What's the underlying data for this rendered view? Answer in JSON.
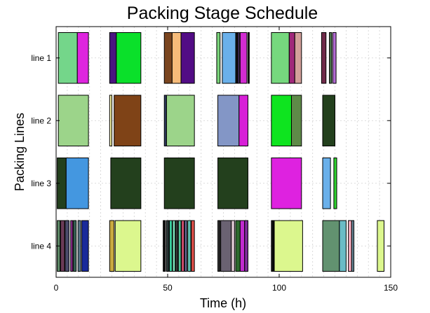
{
  "chart_data": {
    "type": "gantt",
    "title": "Packing Stage Schedule",
    "xlabel": "Time (h)",
    "ylabel": "Packing Lines",
    "xlim": [
      0,
      150
    ],
    "xticks": [
      0,
      50,
      100,
      150
    ],
    "grid": true,
    "lines": [
      "line 1",
      "line 2",
      "line 3",
      "line 4"
    ],
    "tasks": {
      "line 1": [
        {
          "start": 1,
          "end": 9.5,
          "color": "#74d68a"
        },
        {
          "start": 9.5,
          "end": 14.5,
          "color": "#de25de"
        },
        {
          "start": 24,
          "end": 27,
          "color": "#4a1580"
        },
        {
          "start": 27,
          "end": 38,
          "color": "#0ae02a"
        },
        {
          "start": 48.5,
          "end": 52,
          "color": "#7a451f"
        },
        {
          "start": 52,
          "end": 56,
          "color": "#f6bb7a"
        },
        {
          "start": 56,
          "end": 62,
          "color": "#520c85"
        },
        {
          "start": 72,
          "end": 73.5,
          "color": "#7ad47a"
        },
        {
          "start": 74.5,
          "end": 80.5,
          "color": "#6ab0ea"
        },
        {
          "start": 80.5,
          "end": 81.5,
          "color": "#111111"
        },
        {
          "start": 81.5,
          "end": 82.2,
          "color": "#5a3a7a"
        },
        {
          "start": 82.5,
          "end": 85.5,
          "color": "#d22cd2"
        },
        {
          "start": 86,
          "end": 86.6,
          "color": "#1e1e1e"
        },
        {
          "start": 96.5,
          "end": 104.5,
          "color": "#76d87e"
        },
        {
          "start": 104.5,
          "end": 107,
          "color": "#a0287a"
        },
        {
          "start": 107,
          "end": 110,
          "color": "#d3a09a"
        },
        {
          "start": 119,
          "end": 121,
          "color": "#702a4a"
        },
        {
          "start": 122.5,
          "end": 123.5,
          "color": "#4c7a4c"
        },
        {
          "start": 124,
          "end": 125.5,
          "color": "#b06ad0"
        }
      ],
      "line 2": [
        {
          "start": 1,
          "end": 14.5,
          "color": "#9cd48a"
        },
        {
          "start": 24,
          "end": 25,
          "color": "#f1eda0"
        },
        {
          "start": 26,
          "end": 38,
          "color": "#7f4317"
        },
        {
          "start": 48.5,
          "end": 49.5,
          "color": "#2f3a5f"
        },
        {
          "start": 49.5,
          "end": 62,
          "color": "#9cd48a"
        },
        {
          "start": 72.5,
          "end": 82,
          "color": "#8396c6"
        },
        {
          "start": 82,
          "end": 86,
          "color": "#d71fd7"
        },
        {
          "start": 96.5,
          "end": 105.5,
          "color": "#0ee41f"
        },
        {
          "start": 105.5,
          "end": 110,
          "color": "#5e8a48"
        },
        {
          "start": 119.5,
          "end": 125,
          "color": "#23401d"
        }
      ],
      "line 3": [
        {
          "start": 0.5,
          "end": 4.5,
          "color": "#23401d"
        },
        {
          "start": 4.5,
          "end": 14.5,
          "color": "#4497e0"
        },
        {
          "start": 24.5,
          "end": 38,
          "color": "#23401d"
        },
        {
          "start": 48.5,
          "end": 62,
          "color": "#23401d"
        },
        {
          "start": 72.5,
          "end": 86,
          "color": "#23401d"
        },
        {
          "start": 96.5,
          "end": 110,
          "color": "#de22e0"
        },
        {
          "start": 119.5,
          "end": 123,
          "color": "#6ab0ea"
        },
        {
          "start": 124.5,
          "end": 125.8,
          "color": "#2ed32e"
        }
      ],
      "line 4": [
        {
          "start": 0.5,
          "end": 1.8,
          "color": "#5e8a68"
        },
        {
          "start": 2,
          "end": 3.8,
          "color": "#6a3a56"
        },
        {
          "start": 4,
          "end": 5.8,
          "color": "#4a4a6a"
        },
        {
          "start": 6.5,
          "end": 7.5,
          "color": "#8a2a8a"
        },
        {
          "start": 7.8,
          "end": 9,
          "color": "#3a6a5a"
        },
        {
          "start": 9.8,
          "end": 11,
          "color": "#5a7a8a"
        },
        {
          "start": 11.5,
          "end": 14.5,
          "color": "#1a2a9a"
        },
        {
          "start": 24,
          "end": 26,
          "color": "#c9a940"
        },
        {
          "start": 26.5,
          "end": 38,
          "color": "#dcf78e"
        },
        {
          "start": 48,
          "end": 49,
          "color": "#111111"
        },
        {
          "start": 49.5,
          "end": 50.6,
          "color": "#2a3a3a"
        },
        {
          "start": 50.8,
          "end": 52,
          "color": "#3ad2a0"
        },
        {
          "start": 52.2,
          "end": 53.4,
          "color": "#7adab4"
        },
        {
          "start": 53.6,
          "end": 54.6,
          "color": "#3a3a3a"
        },
        {
          "start": 54.8,
          "end": 56,
          "color": "#52c49a"
        },
        {
          "start": 56.2,
          "end": 57.4,
          "color": "#d85070"
        },
        {
          "start": 57.6,
          "end": 58.6,
          "color": "#6a6a9a"
        },
        {
          "start": 59,
          "end": 60.4,
          "color": "#60c0b0"
        },
        {
          "start": 60.6,
          "end": 62,
          "color": "#e0504a"
        },
        {
          "start": 72.5,
          "end": 73.5,
          "color": "#2e2e2e"
        },
        {
          "start": 73.8,
          "end": 78.5,
          "color": "#6a6272"
        },
        {
          "start": 78.5,
          "end": 80,
          "color": "#d8c2cc"
        },
        {
          "start": 80.5,
          "end": 82.5,
          "color": "#2e6a2e"
        },
        {
          "start": 82.5,
          "end": 84.5,
          "color": "#c22ad0"
        },
        {
          "start": 84.5,
          "end": 86,
          "color": "#7e2a9a"
        },
        {
          "start": 96.5,
          "end": 97.5,
          "color": "#111111"
        },
        {
          "start": 97.8,
          "end": 110.5,
          "color": "#dcf78e"
        },
        {
          "start": 119.5,
          "end": 127,
          "color": "#629270"
        },
        {
          "start": 127,
          "end": 130,
          "color": "#6abcc6"
        },
        {
          "start": 131,
          "end": 132.5,
          "color": "#f0a8ba"
        },
        {
          "start": 132.5,
          "end": 133.5,
          "color": "#6a8a9a"
        },
        {
          "start": 144,
          "end": 147,
          "color": "#dcf78e"
        }
      ]
    }
  }
}
